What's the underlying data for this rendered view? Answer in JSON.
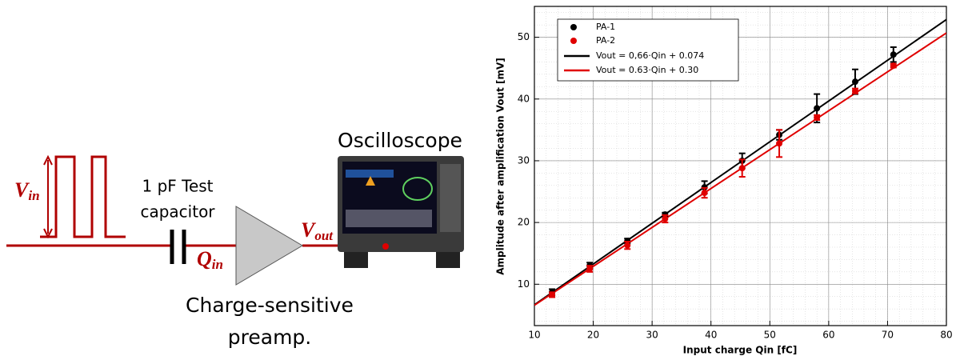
{
  "diagram": {
    "input_label": {
      "main": "V",
      "sub": "in"
    },
    "capacitor_label": [
      "1 pF Test",
      "capacitor"
    ],
    "charge_label": {
      "main": "Q",
      "sub": "in"
    },
    "output_label": {
      "main": "V",
      "sub": "out"
    },
    "scope_label": "Oscilloscope",
    "preamp_label": [
      "Charge-sensitive",
      "preamp."
    ]
  },
  "chart_data": {
    "type": "scatter",
    "x_label": "Input charge Qin [fC]",
    "y_label": "Amplitude after amplification Vout [mV]",
    "xlim": [
      10,
      80
    ],
    "xticks": [
      10,
      20,
      30,
      40,
      50,
      60,
      70,
      80
    ],
    "ylim": [
      3.3,
      55
    ],
    "yticks": [
      10,
      20,
      30,
      40,
      50
    ],
    "grid": true,
    "minor_grid": true,
    "legend": "upper-left",
    "series": [
      {
        "name": "PA-1",
        "color": "#000000",
        "x": [
          13,
          19.4,
          25.8,
          32.2,
          38.9,
          45.3,
          51.6,
          58,
          64.5,
          71
        ],
        "values": [
          8.7,
          13.0,
          17.0,
          21.3,
          25.7,
          30.0,
          34.2,
          38.5,
          42.8,
          47.2
        ],
        "errors": [
          0.5,
          0.5,
          0.4,
          0.3,
          1.0,
          1.2,
          0.8,
          2.3,
          2.0,
          1.2
        ]
      },
      {
        "name": "PA-2",
        "color": "#e00000",
        "x": [
          13,
          19.4,
          25.8,
          32.2,
          38.9,
          45.3,
          51.6,
          58,
          64.5,
          71
        ],
        "values": [
          8.3,
          12.5,
          16.3,
          20.6,
          24.8,
          28.8,
          32.8,
          37.0,
          41.3,
          45.4
        ],
        "errors": [
          0.4,
          0.5,
          0.6,
          0.6,
          0.8,
          1.4,
          2.2,
          0.4,
          0.4,
          0.3
        ]
      }
    ],
    "fits": [
      {
        "name": "Vout = 0,66·Qin + 0.074",
        "color": "#000000",
        "slope": 0.66,
        "intercept": 0.074
      },
      {
        "name": "Vout = 0.63·Qin + 0.30",
        "color": "#e00000",
        "slope": 0.63,
        "intercept": 0.3
      }
    ]
  }
}
